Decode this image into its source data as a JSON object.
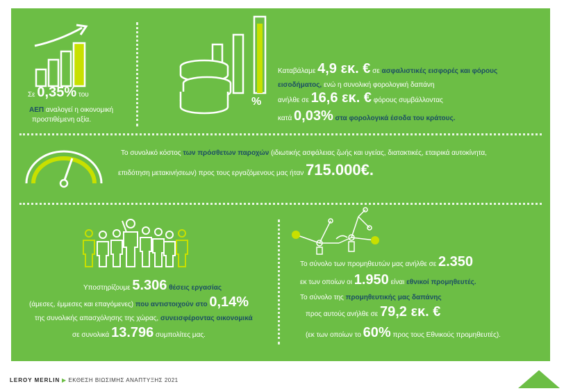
{
  "gdp": {
    "pre": "Σε",
    "value": "0,35%",
    "suf": "του",
    "line2a": "ΑΕΠ",
    "line2b": "αναλογεί η οικονομική",
    "line3": "προστιθέμενη αξία."
  },
  "tax": {
    "l1_pre": "Καταβάλαμε",
    "l1_value": "4,9 εκ. €",
    "l1_mid": "σε",
    "l1_dark": "ασφαλιστικές εισφορές και φόρους",
    "l2_dark": "εισοδήματος,",
    "l2_rest": "ενώ η συνολική φορολογική δαπάνη",
    "l3_pre": "ανήλθε σε",
    "l3_value": "16,6  εκ. €",
    "l3_rest": "φόρους συμβάλλοντας",
    "l4_pre": "κατά",
    "l4_value": "0,03%",
    "l4_dark": "στα φορολογικά έσοδα του κράτους."
  },
  "benefits": {
    "l1_pre": "Το συνολικό κόστος",
    "l1_dark": "των πρόσθετων  παροχών",
    "l1_rest": "(ιδιωτικής ασφάλειας ζωής  και υγείας, διατακτικές,  εταιρικά αυτοκίνητα,",
    "l2_rest": "επιδότηση μετακινήσεων)  προς τους εργαζόμενους μας ήταν",
    "l2_value": "715.000€."
  },
  "jobs": {
    "l1_pre": "Υποστηρίζουμε",
    "l1_value": "5.306",
    "l1_dark": "θέσεις εργασίας",
    "l2_pre": "(άμεσες, έμμεσες και επαγόμενες)",
    "l2_dark": "που αντιστοιχούν στο",
    "l2_value": "0,14%",
    "l3_pre": "της συνολικής απασχόλησης της χώρας,",
    "l3_dark": "συνεισφέροντας οικονομικά",
    "l4_pre": "σε συνολικά",
    "l4_value": "13.796",
    "l4_rest": "συμπολίτες μας."
  },
  "suppliers": {
    "l1_pre": "Το σύνολο των προμηθευτών μας ανήλθε σε",
    "l1_value": "2.350",
    "l2_pre": "εκ των οποίων οι",
    "l2_value": "1.950",
    "l2_mid": "είναι",
    "l2_dark": "εθνικοί προμηθευτές.",
    "l3_pre": "Το σύνολο της",
    "l3_dark": "προμηθευτικής μας δαπάνης",
    "l4_pre": "προς αυτούς ανήλθε σε",
    "l4_value": "79,2 εκ. €",
    "l5_pre": "(εκ των οποίων το",
    "l5_value": "60%",
    "l5_rest": "προς  τους Εθνικούς προμηθευτές)."
  },
  "footer": {
    "brand": "LEROY MERLIN",
    "arrow": "▶",
    "title": "ΕΚΘΕΣΗ ΒΙΩΣΙΜΗΣ ΑΝΑΠΤΥΞΗΣ 2021"
  },
  "percent_sign": "%",
  "colors": {
    "green": "#6cbe45",
    "lime": "#c8e000",
    "dark": "#1c4f63"
  }
}
